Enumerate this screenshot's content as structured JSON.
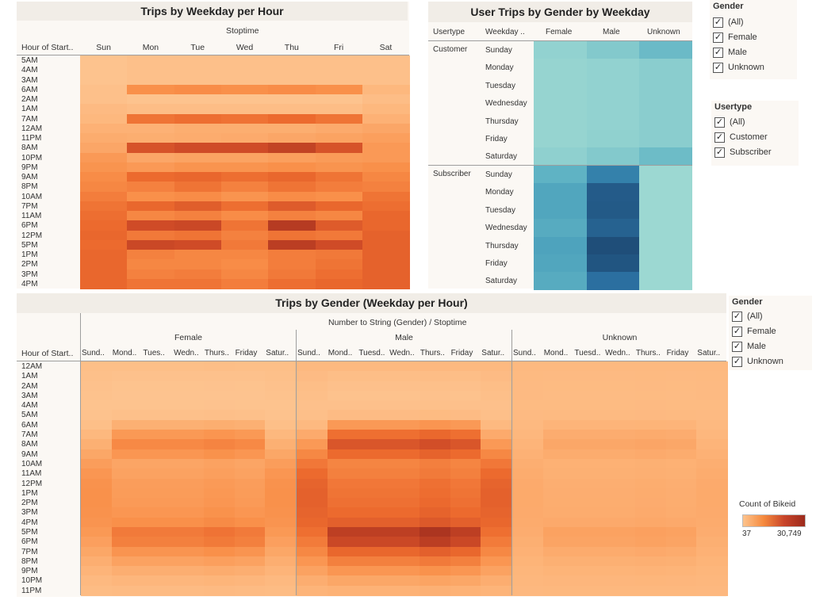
{
  "chart1": {
    "title": "Trips by Weekday per Hour",
    "col_header": "Stoptime",
    "row_header": "Hour of Start..",
    "days": [
      "Sun",
      "Mon",
      "Tue",
      "Wed",
      "Thu",
      "Fri",
      "Sat"
    ],
    "hours": [
      "5AM",
      "4AM",
      "3AM",
      "6AM",
      "2AM",
      "1AM",
      "7AM",
      "12AM",
      "11PM",
      "8AM",
      "10PM",
      "9PM",
      "9AM",
      "8PM",
      "10AM",
      "7PM",
      "11AM",
      "6PM",
      "12PM",
      "5PM",
      "1PM",
      "2PM",
      "3PM",
      "4PM"
    ],
    "values": [
      [
        0.1,
        0.12,
        0.12,
        0.12,
        0.12,
        0.12,
        0.12
      ],
      [
        0.1,
        0.12,
        0.12,
        0.12,
        0.12,
        0.12,
        0.12
      ],
      [
        0.1,
        0.12,
        0.12,
        0.12,
        0.12,
        0.12,
        0.12
      ],
      [
        0.12,
        0.4,
        0.42,
        0.4,
        0.42,
        0.4,
        0.18
      ],
      [
        0.12,
        0.1,
        0.1,
        0.1,
        0.1,
        0.1,
        0.14
      ],
      [
        0.16,
        0.14,
        0.14,
        0.14,
        0.14,
        0.14,
        0.18
      ],
      [
        0.18,
        0.55,
        0.58,
        0.56,
        0.6,
        0.55,
        0.22
      ],
      [
        0.22,
        0.22,
        0.24,
        0.24,
        0.24,
        0.26,
        0.28
      ],
      [
        0.25,
        0.24,
        0.25,
        0.26,
        0.28,
        0.3,
        0.32
      ],
      [
        0.28,
        0.75,
        0.8,
        0.8,
        0.85,
        0.75,
        0.35
      ],
      [
        0.35,
        0.28,
        0.3,
        0.3,
        0.32,
        0.34,
        0.35
      ],
      [
        0.38,
        0.35,
        0.38,
        0.38,
        0.4,
        0.38,
        0.4
      ],
      [
        0.42,
        0.6,
        0.62,
        0.58,
        0.62,
        0.55,
        0.45
      ],
      [
        0.45,
        0.48,
        0.55,
        0.48,
        0.55,
        0.5,
        0.48
      ],
      [
        0.5,
        0.4,
        0.42,
        0.38,
        0.42,
        0.4,
        0.55
      ],
      [
        0.55,
        0.62,
        0.68,
        0.58,
        0.7,
        0.62,
        0.58
      ],
      [
        0.58,
        0.45,
        0.48,
        0.42,
        0.48,
        0.45,
        0.62
      ],
      [
        0.6,
        0.8,
        0.82,
        0.55,
        0.9,
        0.7,
        0.62
      ],
      [
        0.62,
        0.52,
        0.55,
        0.48,
        0.55,
        0.52,
        0.65
      ],
      [
        0.6,
        0.82,
        0.8,
        0.52,
        0.88,
        0.8,
        0.65
      ],
      [
        0.62,
        0.48,
        0.45,
        0.45,
        0.5,
        0.52,
        0.65
      ],
      [
        0.62,
        0.45,
        0.45,
        0.42,
        0.5,
        0.55,
        0.65
      ],
      [
        0.62,
        0.48,
        0.5,
        0.45,
        0.52,
        0.58,
        0.65
      ],
      [
        0.62,
        0.55,
        0.55,
        0.5,
        0.58,
        0.62,
        0.65
      ]
    ]
  },
  "chart2": {
    "title": "User Trips by Gender by Weekday",
    "headers": [
      "Usertype",
      "Weekday ..",
      "Female",
      "Male",
      "Unknown"
    ],
    "usertypes": [
      "Customer",
      "Subscriber"
    ],
    "weekdays": [
      "Sunday",
      "Monday",
      "Tuesday",
      "Wednesday",
      "Thursday",
      "Friday",
      "Saturday"
    ],
    "customer": [
      [
        0.18,
        0.25,
        0.35
      ],
      [
        0.15,
        0.18,
        0.22
      ],
      [
        0.15,
        0.18,
        0.22
      ],
      [
        0.15,
        0.18,
        0.22
      ],
      [
        0.15,
        0.18,
        0.22
      ],
      [
        0.15,
        0.19,
        0.22
      ],
      [
        0.2,
        0.25,
        0.34
      ]
    ],
    "subscriber": [
      [
        0.4,
        0.7,
        0.1
      ],
      [
        0.48,
        0.92,
        0.1
      ],
      [
        0.48,
        0.93,
        0.1
      ],
      [
        0.45,
        0.88,
        0.1
      ],
      [
        0.5,
        1.0,
        0.1
      ],
      [
        0.48,
        0.96,
        0.1
      ],
      [
        0.45,
        0.8,
        0.1
      ]
    ]
  },
  "chart3": {
    "title": "Trips by Gender (Weekday per Hour)",
    "col_header": "Number to String (Gender) / Stoptime",
    "row_header": "Hour of Start..",
    "genders": [
      "Female",
      "Male",
      "Unknown"
    ],
    "days": [
      [
        "Sund..",
        "Mond..",
        "Tues..",
        "Wedn..",
        "Thurs..",
        "Friday",
        "Satur.."
      ],
      [
        "Sund..",
        "Mond..",
        "Tuesd..",
        "Wedn..",
        "Thurs..",
        "Friday",
        "Satur.."
      ],
      [
        "Sund..",
        "Mond..",
        "Tuesd..",
        "Wedn..",
        "Thurs..",
        "Friday",
        "Satur.."
      ]
    ],
    "hours": [
      "12AM",
      "1AM",
      "2AM",
      "3AM",
      "4AM",
      "5AM",
      "6AM",
      "7AM",
      "8AM",
      "9AM",
      "10AM",
      "11AM",
      "12PM",
      "1PM",
      "2PM",
      "3PM",
      "4PM",
      "5PM",
      "6PM",
      "7PM",
      "8PM",
      "9PM",
      "10PM",
      "11PM"
    ]
  },
  "filters": {
    "gender1": {
      "title": "Gender",
      "items": [
        "(All)",
        "Female",
        "Male",
        "Unknown"
      ]
    },
    "usertype": {
      "title": "Usertype",
      "items": [
        "(All)",
        "Customer",
        "Subscriber"
      ]
    },
    "gender2": {
      "title": "Gender",
      "items": [
        "(All)",
        "Female",
        "Male",
        "Unknown"
      ]
    },
    "check_glyph": "✓"
  },
  "legend": {
    "title": "Count of Bikeid",
    "min": "37",
    "max": "30,749"
  },
  "colors": {
    "orange_low": "#fdc38d",
    "orange_high": "#9c2a1c",
    "teal_low": "#a9e0d4",
    "teal_high": "#1f4e79"
  }
}
